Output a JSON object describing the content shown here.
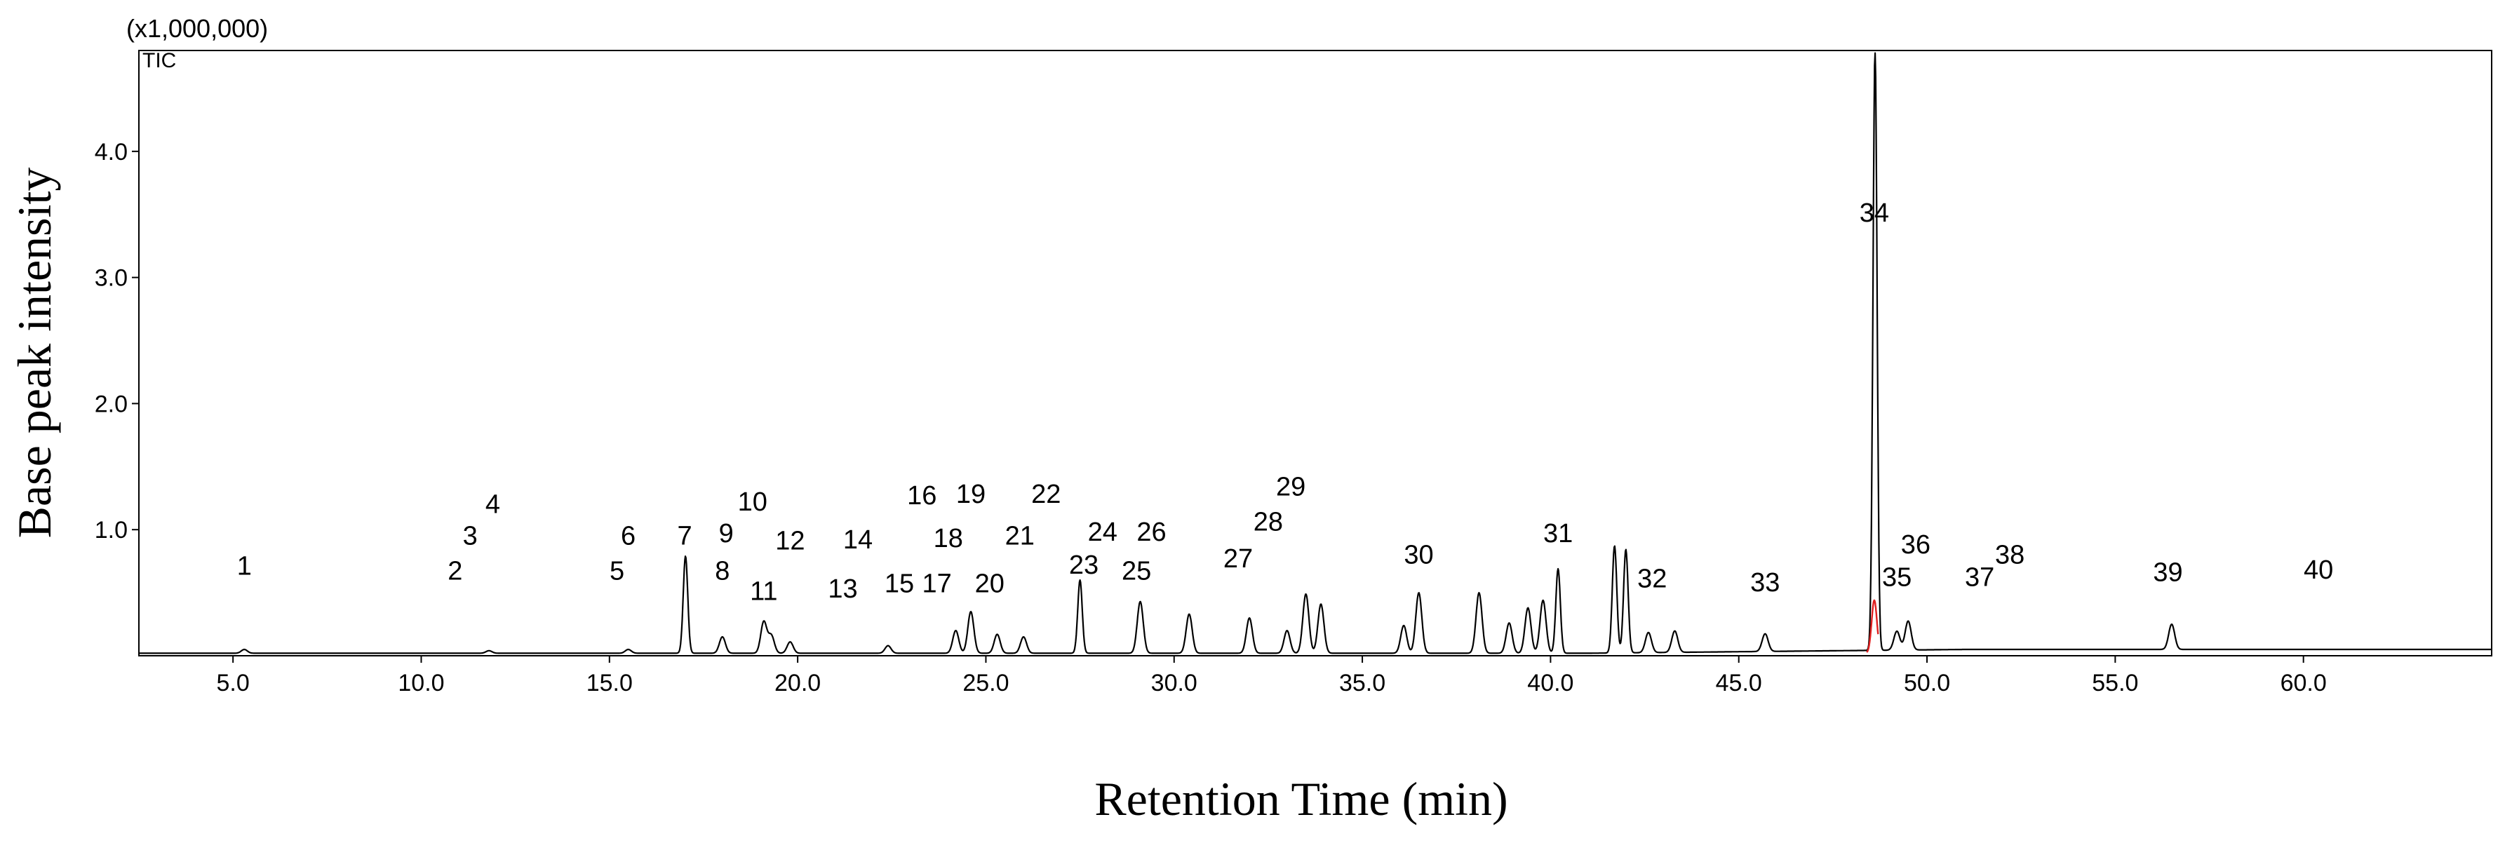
{
  "chart_data": {
    "type": "line",
    "title": "",
    "xlabel": "Retention Time (min)",
    "ylabel": "Base peak intensity",
    "y_multiplier": "(x1,000,000)",
    "trace_label": "TIC",
    "xlim": [
      2.5,
      65.0
    ],
    "ylim": [
      0,
      4.8
    ],
    "grid": false,
    "x_ticks": [
      5.0,
      10.0,
      15.0,
      20.0,
      25.0,
      30.0,
      35.0,
      40.0,
      45.0,
      50.0,
      55.0,
      60.0
    ],
    "x_tick_labels": [
      "5.0",
      "10.0",
      "15.0",
      "20.0",
      "25.0",
      "30.0",
      "35.0",
      "40.0",
      "45.0",
      "50.0",
      "55.0",
      "60.0"
    ],
    "y_ticks": [
      1.0,
      2.0,
      3.0,
      4.0
    ],
    "y_tick_labels": [
      "1.0",
      "2.0",
      "3.0",
      "4.0"
    ],
    "baseline": 0.02,
    "peaks": [
      {
        "rt": 5.3,
        "h": 0.03
      },
      {
        "rt": 11.8,
        "h": 0.02
      },
      {
        "rt": 15.5,
        "h": 0.03
      },
      {
        "rt": 17.02,
        "h": 0.77
      },
      {
        "rt": 18.0,
        "h": 0.13
      },
      {
        "rt": 19.1,
        "h": 0.25
      },
      {
        "rt": 19.3,
        "h": 0.14
      },
      {
        "rt": 19.8,
        "h": 0.09
      },
      {
        "rt": 22.4,
        "h": 0.06
      },
      {
        "rt": 24.2,
        "h": 0.18
      },
      {
        "rt": 24.6,
        "h": 0.33
      },
      {
        "rt": 25.3,
        "h": 0.15
      },
      {
        "rt": 26.0,
        "h": 0.13
      },
      {
        "rt": 27.5,
        "h": 0.58
      },
      {
        "rt": 29.1,
        "h": 0.41
      },
      {
        "rt": 30.4,
        "h": 0.31
      },
      {
        "rt": 32.0,
        "h": 0.28
      },
      {
        "rt": 33.0,
        "h": 0.18
      },
      {
        "rt": 33.5,
        "h": 0.47
      },
      {
        "rt": 33.9,
        "h": 0.39
      },
      {
        "rt": 36.1,
        "h": 0.22
      },
      {
        "rt": 36.5,
        "h": 0.48
      },
      {
        "rt": 38.1,
        "h": 0.48
      },
      {
        "rt": 38.9,
        "h": 0.24
      },
      {
        "rt": 39.4,
        "h": 0.36
      },
      {
        "rt": 39.8,
        "h": 0.42
      },
      {
        "rt": 40.2,
        "h": 0.67
      },
      {
        "rt": 41.7,
        "h": 0.85
      },
      {
        "rt": 42.0,
        "h": 0.82
      },
      {
        "rt": 42.6,
        "h": 0.16
      },
      {
        "rt": 43.3,
        "h": 0.17
      },
      {
        "rt": 45.7,
        "h": 0.14
      },
      {
        "rt": 48.62,
        "h": 4.75
      },
      {
        "rt": 49.2,
        "h": 0.15
      },
      {
        "rt": 49.5,
        "h": 0.23
      },
      {
        "rt": 56.5,
        "h": 0.2
      }
    ],
    "highlight_trace": {
      "color": "#e02020",
      "x": [
        48.4,
        48.7
      ],
      "peak_h": 0.42
    },
    "annotations": [
      {
        "text": "1",
        "rt": 5.3,
        "y": 0.72
      },
      {
        "text": "2",
        "rt": 10.9,
        "y": 0.68
      },
      {
        "text": "3",
        "rt": 11.3,
        "y": 0.96
      },
      {
        "text": "4",
        "rt": 11.9,
        "y": 1.21
      },
      {
        "text": "5",
        "rt": 15.2,
        "y": 0.68
      },
      {
        "text": "6",
        "rt": 15.5,
        "y": 0.96
      },
      {
        "text": "7",
        "rt": 17.0,
        "y": 0.96
      },
      {
        "text": "8",
        "rt": 18.0,
        "y": 0.68
      },
      {
        "text": "9",
        "rt": 18.1,
        "y": 0.98
      },
      {
        "text": "10",
        "rt": 18.8,
        "y": 1.23
      },
      {
        "text": "11",
        "rt": 19.1,
        "y": 0.52
      },
      {
        "text": "12",
        "rt": 19.8,
        "y": 0.92
      },
      {
        "text": "13",
        "rt": 21.2,
        "y": 0.54
      },
      {
        "text": "14",
        "rt": 21.6,
        "y": 0.93
      },
      {
        "text": "15",
        "rt": 22.7,
        "y": 0.58
      },
      {
        "text": "16",
        "rt": 23.3,
        "y": 1.28
      },
      {
        "text": "17",
        "rt": 23.7,
        "y": 0.58
      },
      {
        "text": "18",
        "rt": 24.0,
        "y": 0.94
      },
      {
        "text": "19",
        "rt": 24.6,
        "y": 1.29
      },
      {
        "text": "20",
        "rt": 25.1,
        "y": 0.58
      },
      {
        "text": "21",
        "rt": 25.9,
        "y": 0.96
      },
      {
        "text": "22",
        "rt": 26.6,
        "y": 1.29
      },
      {
        "text": "23",
        "rt": 27.6,
        "y": 0.73
      },
      {
        "text": "24",
        "rt": 28.1,
        "y": 0.99
      },
      {
        "text": "25",
        "rt": 29.0,
        "y": 0.68
      },
      {
        "text": "26",
        "rt": 29.4,
        "y": 0.99
      },
      {
        "text": "27",
        "rt": 31.7,
        "y": 0.78
      },
      {
        "text": "28",
        "rt": 32.5,
        "y": 1.07
      },
      {
        "text": "29",
        "rt": 33.1,
        "y": 1.35
      },
      {
        "text": "30",
        "rt": 36.5,
        "y": 0.81
      },
      {
        "text": "31",
        "rt": 40.2,
        "y": 0.98
      },
      {
        "text": "32",
        "rt": 42.7,
        "y": 0.62
      },
      {
        "text": "33",
        "rt": 45.7,
        "y": 0.59
      },
      {
        "text": "34",
        "rt": 48.6,
        "y": 3.52
      },
      {
        "text": "35",
        "rt": 49.2,
        "y": 0.63
      },
      {
        "text": "36",
        "rt": 49.7,
        "y": 0.89
      },
      {
        "text": "37",
        "rt": 51.4,
        "y": 0.63
      },
      {
        "text": "38",
        "rt": 52.2,
        "y": 0.81
      },
      {
        "text": "39",
        "rt": 56.4,
        "y": 0.67
      },
      {
        "text": "40",
        "rt": 60.4,
        "y": 0.69
      }
    ]
  }
}
